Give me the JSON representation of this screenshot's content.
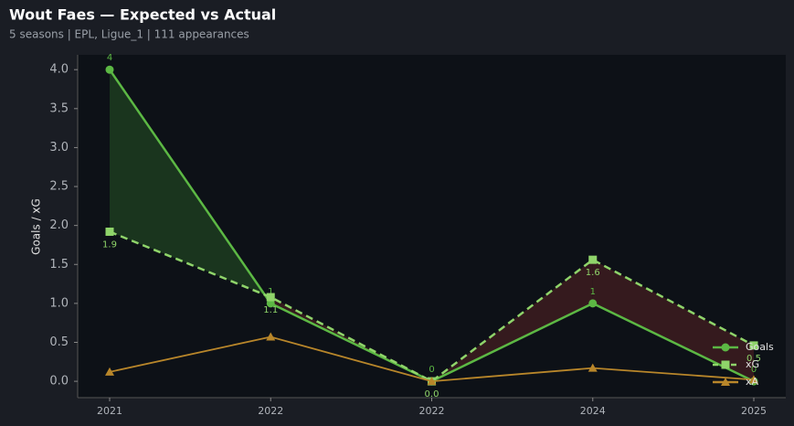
{
  "chart_data": {
    "type": "line",
    "title": "Wout Faes — Expected vs Actual",
    "subtitle": "5 seasons | EPL, Ligue_1 | 111 appearances",
    "y_label": "Goals / xG",
    "categories": [
      "2021",
      "2022",
      "2022",
      "2024",
      "2025"
    ],
    "series": [
      {
        "name": "Goals",
        "color": "#5cb844",
        "dash": false,
        "marker": "circle",
        "values": [
          4,
          1,
          0,
          1,
          0
        ]
      },
      {
        "name": "xG",
        "color": "#8fd46a",
        "dash": true,
        "marker": "square",
        "values": [
          1.92,
          1.08,
          0.0,
          1.56,
          0.46
        ],
        "value_labels": [
          "1.9",
          "1.1",
          "0.0",
          "1.6",
          "0.5"
        ]
      },
      {
        "name": "xA",
        "color": "#b8862a",
        "dash": false,
        "marker": "triangle",
        "values": [
          0.12,
          0.57,
          0.0,
          0.17,
          0.02
        ]
      }
    ],
    "ylim": [
      -0.21,
      4.19
    ],
    "yticks": [
      {
        "value": 0,
        "label": "0.0"
      },
      {
        "value": 0.5,
        "label": "0.5"
      },
      {
        "value": 1,
        "label": "1.0"
      },
      {
        "value": 1.5,
        "label": "1.5"
      },
      {
        "value": 2,
        "label": "2.0"
      },
      {
        "value": 2.5,
        "label": "2.5"
      },
      {
        "value": 3,
        "label": "3.0"
      },
      {
        "value": 3.5,
        "label": "3.5"
      },
      {
        "value": 4,
        "label": "4.0"
      }
    ],
    "legend": "lower right",
    "fill_colors": {
      "above": "#1c3a1f",
      "below": "#3a1c1f"
    }
  }
}
